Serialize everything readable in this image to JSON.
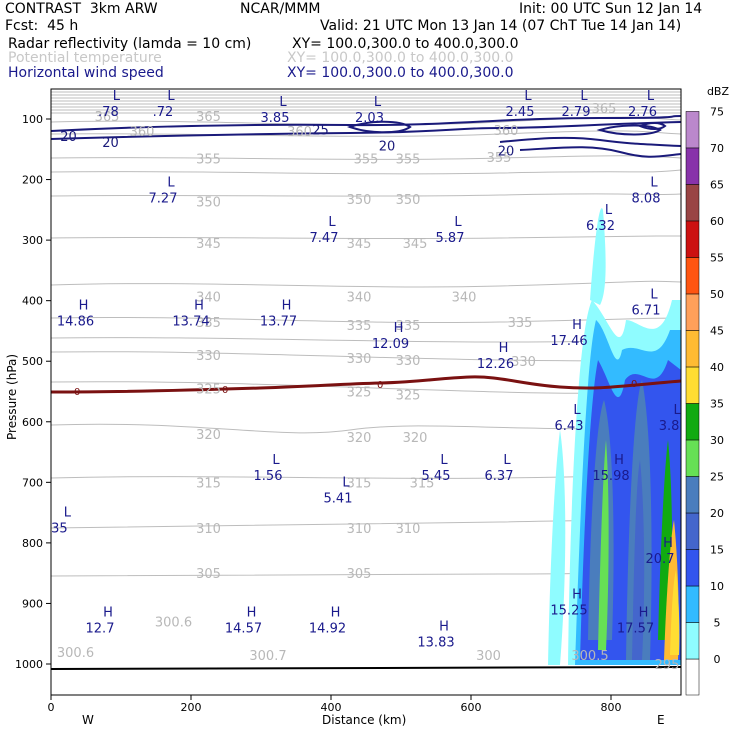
{
  "header": {
    "model": "CONTRAST  3km ARW",
    "center": "NCAR/MMM",
    "init": "Init: 00 UTC Sun 12 Jan 14",
    "fcst": "Fcst:  45 h",
    "valid": "Valid: 21 UTC Mon 13 Jan 14 (07 ChT Tue 14 Jan 14)",
    "fields": [
      {
        "name": "Radar reflectivity (lamda = 10 cm)",
        "xy": "XY= 100.0,300.0 to 400.0,300.0",
        "color": "#000000"
      },
      {
        "name": "Potential temperature",
        "xy": "XY= 100.0,300.0 to 400.0,300.0",
        "color": "#c8c8c8"
      },
      {
        "name": "Horizontal wind speed",
        "xy": "XY= 100.0,300.0 to 400.0,300.0",
        "color": "#1a1a8c"
      }
    ]
  },
  "chart_data": {
    "type": "cross-section",
    "xlabel": "Distance (km)",
    "ylabel": "Pressure (hPa)",
    "xlim": [
      0,
      900
    ],
    "ylim": [
      1050,
      50
    ],
    "x_ticks": [
      0,
      200,
      400,
      600,
      800
    ],
    "y_ticks": [
      100,
      200,
      300,
      400,
      500,
      600,
      700,
      800,
      900,
      1000
    ],
    "west_label": "W",
    "east_label": "E",
    "colorbar": {
      "units": "dBZ",
      "levels": [
        0,
        5,
        10,
        15,
        20,
        25,
        30,
        35,
        40,
        45,
        50,
        55,
        60,
        65,
        70,
        75
      ],
      "colors": [
        "#ffffff",
        "#8ffcff",
        "#33bbff",
        "#3355ee",
        "#4466cc",
        "#4a7dbd",
        "#66e055",
        "#11aa11",
        "#ffdd33",
        "#ffbb33",
        "#ffa05a",
        "#ff5511",
        "#cc1111",
        "#994444",
        "#8833aa",
        "#bb88cc"
      ]
    },
    "theta_labels": [
      {
        "text": "365",
        "x": 80,
        "p": 95
      },
      {
        "text": "360",
        "x": 130,
        "p": 120
      },
      {
        "text": "365",
        "x": 225,
        "p": 95
      },
      {
        "text": "360",
        "x": 355,
        "p": 120
      },
      {
        "text": "360",
        "x": 650,
        "p": 118
      },
      {
        "text": "365",
        "x": 790,
        "p": 82
      },
      {
        "text": "355",
        "x": 225,
        "p": 165
      },
      {
        "text": "355",
        "x": 450,
        "p": 165
      },
      {
        "text": "355",
        "x": 510,
        "p": 165
      },
      {
        "text": "355",
        "x": 640,
        "p": 163
      },
      {
        "text": "350",
        "x": 225,
        "p": 236
      },
      {
        "text": "350",
        "x": 440,
        "p": 232
      },
      {
        "text": "350",
        "x": 510,
        "p": 232
      },
      {
        "text": "345",
        "x": 225,
        "p": 305
      },
      {
        "text": "345",
        "x": 440,
        "p": 305
      },
      {
        "text": "345",
        "x": 520,
        "p": 305
      },
      {
        "text": "340",
        "x": 225,
        "p": 393
      },
      {
        "text": "340",
        "x": 440,
        "p": 393
      },
      {
        "text": "340",
        "x": 590,
        "p": 393
      },
      {
        "text": "335",
        "x": 225,
        "p": 435
      },
      {
        "text": "335",
        "x": 440,
        "p": 440
      },
      {
        "text": "335",
        "x": 510,
        "p": 440
      },
      {
        "text": "335",
        "x": 670,
        "p": 435
      },
      {
        "text": "330",
        "x": 225,
        "p": 490
      },
      {
        "text": "330",
        "x": 440,
        "p": 495
      },
      {
        "text": "330",
        "x": 510,
        "p": 498
      },
      {
        "text": "330",
        "x": 675,
        "p": 500
      },
      {
        "text": "325",
        "x": 225,
        "p": 545
      },
      {
        "text": "325",
        "x": 440,
        "p": 550
      },
      {
        "text": "325",
        "x": 510,
        "p": 555
      },
      {
        "text": "320",
        "x": 225,
        "p": 620
      },
      {
        "text": "320",
        "x": 440,
        "p": 625
      },
      {
        "text": "320",
        "x": 520,
        "p": 625
      },
      {
        "text": "315",
        "x": 225,
        "p": 700
      },
      {
        "text": "315",
        "x": 440,
        "p": 700
      },
      {
        "text": "315",
        "x": 530,
        "p": 700
      },
      {
        "text": "310",
        "x": 225,
        "p": 775
      },
      {
        "text": "310",
        "x": 440,
        "p": 775
      },
      {
        "text": "310",
        "x": 510,
        "p": 775
      },
      {
        "text": "305",
        "x": 225,
        "p": 850
      },
      {
        "text": "305",
        "x": 440,
        "p": 850
      },
      {
        "text": "300.6",
        "x": 175,
        "p": 930
      },
      {
        "text": "300.6",
        "x": 35,
        "p": 980
      },
      {
        "text": "300.7",
        "x": 310,
        "p": 985
      },
      {
        "text": "300",
        "x": 625,
        "p": 985
      },
      {
        "text": "300.5",
        "x": 770,
        "p": 985
      },
      {
        "text": "295",
        "x": 880,
        "p": 1000
      }
    ],
    "wind_labels": [
      {
        "text": "20",
        "x": 25,
        "p": 128
      },
      {
        "text": "20",
        "x": 85,
        "p": 138
      },
      {
        "text": "25",
        "x": 385,
        "p": 117
      },
      {
        "text": "20",
        "x": 480,
        "p": 144
      },
      {
        "text": "20",
        "x": 650,
        "p": 152
      }
    ],
    "wind_extrema": [
      {
        "kind": "L",
        "value": ".78",
        "x": 82,
        "p": 82
      },
      {
        "kind": "L",
        "value": ".72",
        "x": 160,
        "p": 82
      },
      {
        "kind": "L",
        "value": "3.85",
        "x": 320,
        "p": 92
      },
      {
        "kind": "L",
        "value": "2.03",
        "x": 455,
        "p": 92
      },
      {
        "kind": "L",
        "value": "2.45",
        "x": 670,
        "p": 82
      },
      {
        "kind": "L",
        "value": "2.79",
        "x": 750,
        "p": 82
      },
      {
        "kind": "L",
        "value": "2.76",
        "x": 845,
        "p": 82
      },
      {
        "kind": "L",
        "value": "7.27",
        "x": 160,
        "p": 225
      },
      {
        "kind": "L",
        "value": "8.08",
        "x": 850,
        "p": 225
      },
      {
        "kind": "L",
        "value": "7.47",
        "x": 390,
        "p": 290
      },
      {
        "kind": "L",
        "value": "5.87",
        "x": 570,
        "p": 290
      },
      {
        "kind": "L",
        "value": "6.32",
        "x": 785,
        "p": 270
      },
      {
        "kind": "L",
        "value": "6.71",
        "x": 850,
        "p": 410
      },
      {
        "kind": "H",
        "value": "14.86",
        "x": 35,
        "p": 428
      },
      {
        "kind": "H",
        "value": "13.74",
        "x": 200,
        "p": 428
      },
      {
        "kind": "H",
        "value": "13.77",
        "x": 325,
        "p": 428
      },
      {
        "kind": "H",
        "value": "12.09",
        "x": 485,
        "p": 465
      },
      {
        "kind": "H",
        "value": "12.26",
        "x": 635,
        "p": 498
      },
      {
        "kind": "H",
        "value": "17.46",
        "x": 740,
        "p": 460
      },
      {
        "kind": "L",
        "value": "6.43",
        "x": 740,
        "p": 600
      },
      {
        "kind": "L",
        "value": "3.8",
        "x": 883,
        "p": 600
      },
      {
        "kind": "L",
        "value": "1.56",
        "x": 310,
        "p": 683
      },
      {
        "kind": "L",
        "value": "5.45",
        "x": 550,
        "p": 683
      },
      {
        "kind": "L",
        "value": "6.37",
        "x": 640,
        "p": 683
      },
      {
        "kind": "H",
        "value": "15.98",
        "x": 800,
        "p": 683
      },
      {
        "kind": "L",
        "value": "5.41",
        "x": 410,
        "p": 720
      },
      {
        "kind": "L",
        "value": "35",
        "x": 12,
        "p": 770
      },
      {
        "kind": "H",
        "value": "20.7",
        "x": 870,
        "p": 820
      },
      {
        "kind": "H",
        "value": "15.25",
        "x": 740,
        "p": 905
      },
      {
        "kind": "H",
        "value": "12.7",
        "x": 70,
        "p": 935
      },
      {
        "kind": "H",
        "value": "14.57",
        "x": 275,
        "p": 935
      },
      {
        "kind": "H",
        "value": "14.92",
        "x": 395,
        "p": 935
      },
      {
        "kind": "H",
        "value": "13.83",
        "x": 550,
        "p": 958
      },
      {
        "kind": "H",
        "value": "17.57",
        "x": 835,
        "p": 935
      }
    ],
    "freezing_level_label": "0"
  }
}
